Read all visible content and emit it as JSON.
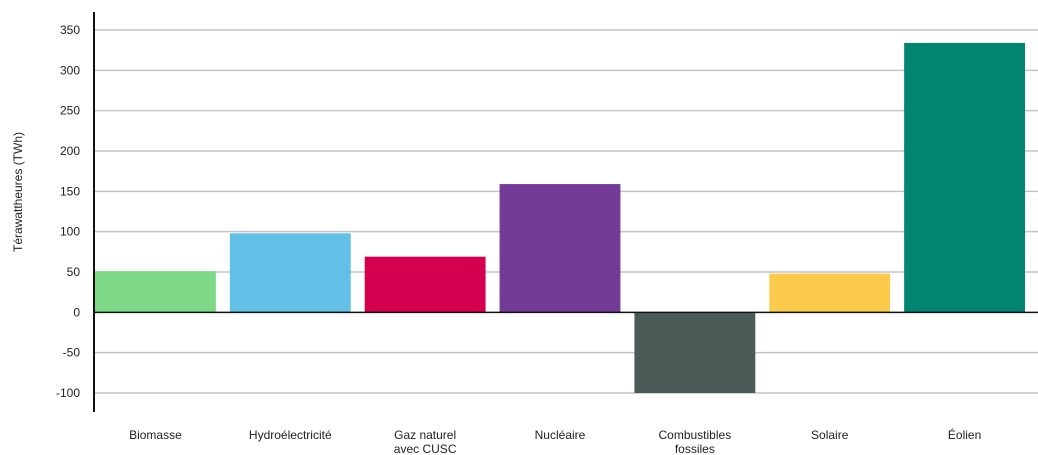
{
  "chart_data": {
    "type": "bar",
    "title": "",
    "xlabel": "",
    "ylabel": "Térawattheures (TWh)",
    "ylim": [
      -120,
      350
    ],
    "yticks": [
      -100,
      -50,
      0,
      50,
      100,
      150,
      200,
      250,
      300,
      350
    ],
    "grid": true,
    "categories": [
      [
        "Biomasse"
      ],
      [
        "Hydroélectricité"
      ],
      [
        "Gaz naturel",
        "avec CUSC"
      ],
      [
        "Nucléaire"
      ],
      [
        "Combustibles",
        "fossiles"
      ],
      [
        "Solaire"
      ],
      [
        "Éolien"
      ]
    ],
    "values": [
      51,
      98,
      69,
      159,
      -100,
      48,
      334
    ],
    "colors": [
      "#7dd987",
      "#62bfe6",
      "#d4004f",
      "#733b96",
      "#4a5b57",
      "#fdcb4b",
      "#008571"
    ]
  }
}
